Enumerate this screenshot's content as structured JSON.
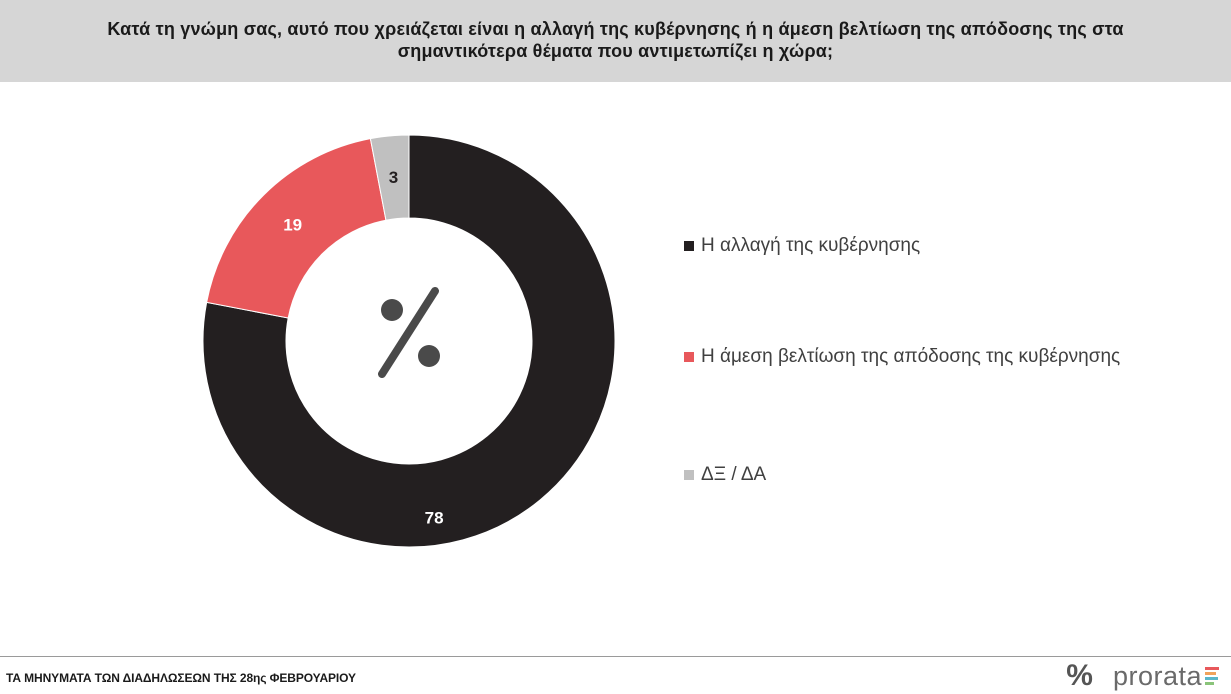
{
  "header": {
    "question_line1": "Κατά τη γνώμη σας, αυτό που χρειάζεται είναι η αλλαγή της κυβέρνησης ή η άμεση βελτίωση της απόδοσης της στα",
    "question_line2": "σημαντικότερα θέματα που αντιμετωπίζει η χώρα;"
  },
  "chart_data": {
    "type": "pie",
    "variant": "donut",
    "center_symbol": "%",
    "legend_position": "right",
    "slices": [
      {
        "label": "Η αλλαγή της κυβέρνησης",
        "value": 78,
        "color": "#231f20",
        "label_color": "#ffffff"
      },
      {
        "label": "Η άμεση βελτίωση της απόδοσης της κυβέρνησης",
        "value": 19,
        "color": "#e8585b",
        "label_color": "#ffffff"
      },
      {
        "label": "ΔΞ / ΔΑ",
        "value": 3,
        "color": "#c0c0c0",
        "label_color": "#231f20"
      }
    ]
  },
  "footer": {
    "caption": "ΤΑ ΜΗΝΥΜΑΤΑ ΤΩΝ ΔΙΑΔΗΛΩΣΕΩΝ ΤΗΣ 28ης ΦΕΒΡΟΥΑΡΙΟΥ",
    "brand_symbol": "%",
    "brand_name": "prorata",
    "brand_bar_colors": [
      "#e8585b",
      "#f0a35c",
      "#5ab6c9",
      "#8ac47a"
    ]
  }
}
